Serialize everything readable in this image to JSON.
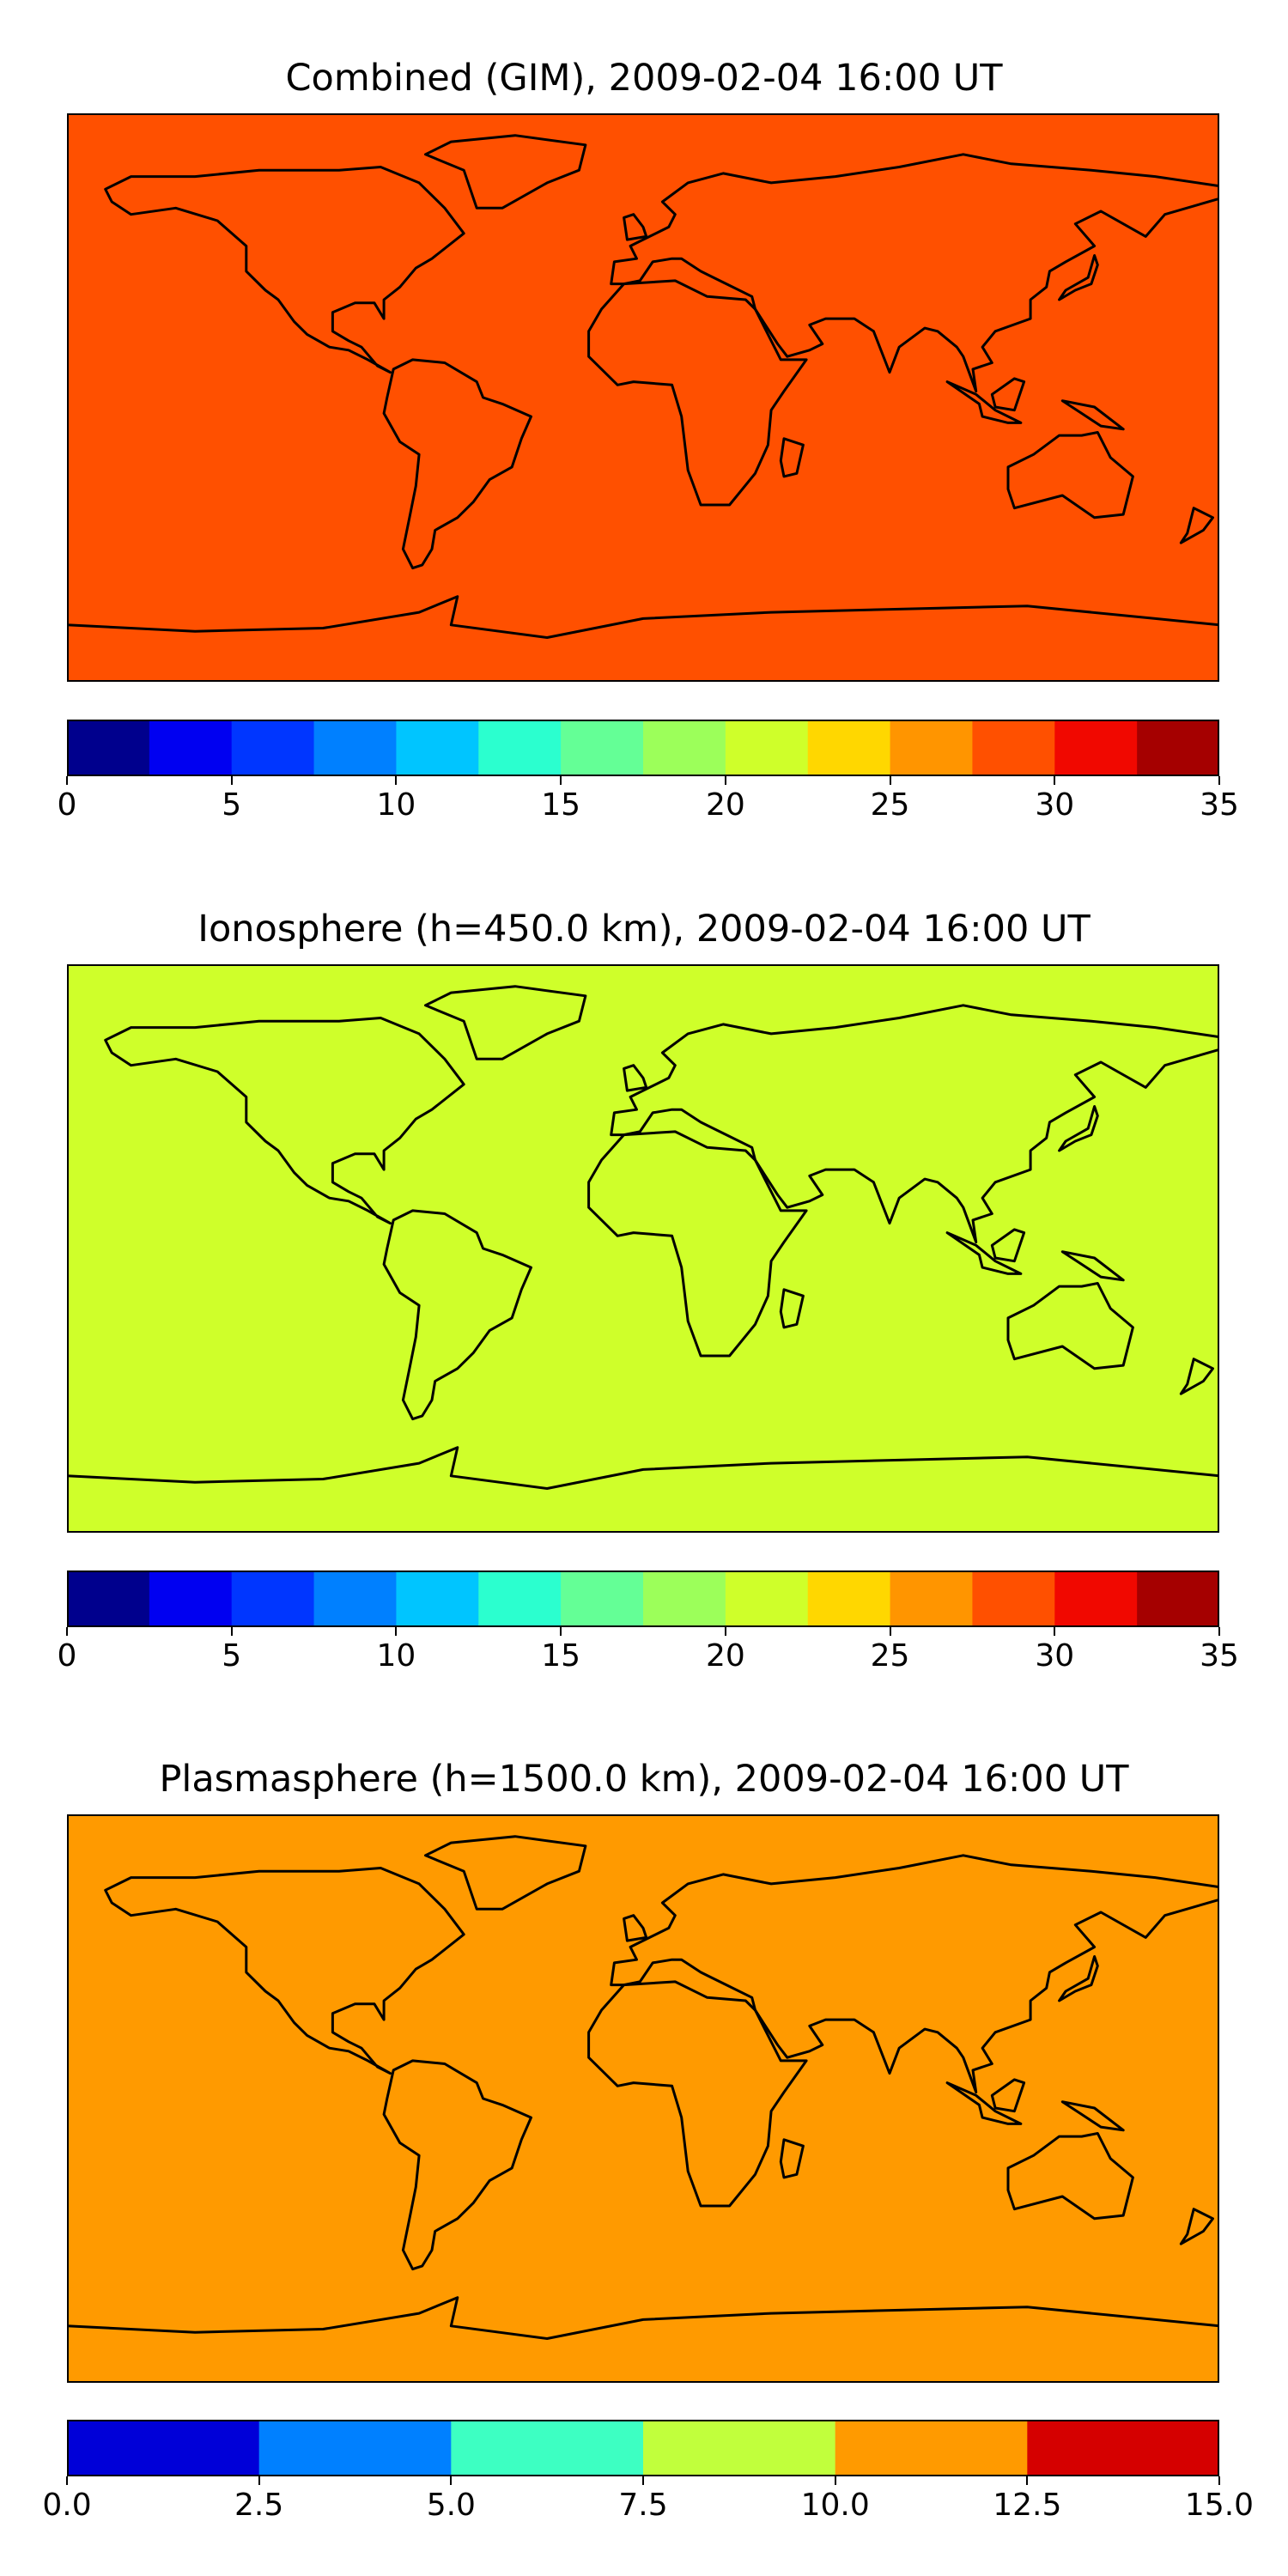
{
  "panels": [
    {
      "title": "Combined (GIM), 2009-02-04 16:00 UT",
      "colorbar": {
        "ticks": [
          "0",
          "5",
          "10",
          "15",
          "20",
          "25",
          "30",
          "35"
        ],
        "min": 0,
        "max": 35,
        "bin_colors": [
          "#00008d",
          "#0000f1",
          "#0036ff",
          "#0080ff",
          "#00c5ff",
          "#2bffcf",
          "#64ff96",
          "#9cff5a",
          "#cfff2a",
          "#ffd700",
          "#ff9500",
          "#ff5000",
          "#f10800",
          "#a50000"
        ]
      },
      "field_levels": [
        5,
        7.5,
        10,
        12.5,
        15,
        17.5,
        20,
        22.5,
        25,
        27.5
      ]
    },
    {
      "title": "Ionosphere  (h=450.0 km), 2009-02-04 16:00 UT",
      "colorbar": {
        "ticks": [
          "0",
          "5",
          "10",
          "15",
          "20",
          "25",
          "30",
          "35"
        ],
        "min": 0,
        "max": 35,
        "bin_colors": [
          "#00008d",
          "#0000f1",
          "#0036ff",
          "#0080ff",
          "#00c5ff",
          "#2bffcf",
          "#64ff96",
          "#9cff5a",
          "#cfff2a",
          "#ffd700",
          "#ff9500",
          "#ff5000",
          "#f10800",
          "#a50000"
        ]
      },
      "field_levels": [
        2.5,
        5,
        7.5,
        10,
        12.5,
        15,
        17.5,
        20
      ]
    },
    {
      "title": "Plasmasphere (h=1500.0 km), 2009-02-04 16:00 UT",
      "colorbar": {
        "ticks": [
          "0.0",
          "2.5",
          "5.0",
          "7.5",
          "10.0",
          "12.5",
          "15.0"
        ],
        "min": 0,
        "max": 15,
        "bin_colors": [
          "#0000d8",
          "#0080ff",
          "#3dffc2",
          "#c1ff3c",
          "#ff9a00",
          "#d50000"
        ]
      },
      "field_levels": [
        2.5,
        5,
        7.5,
        10
      ]
    }
  ]
}
